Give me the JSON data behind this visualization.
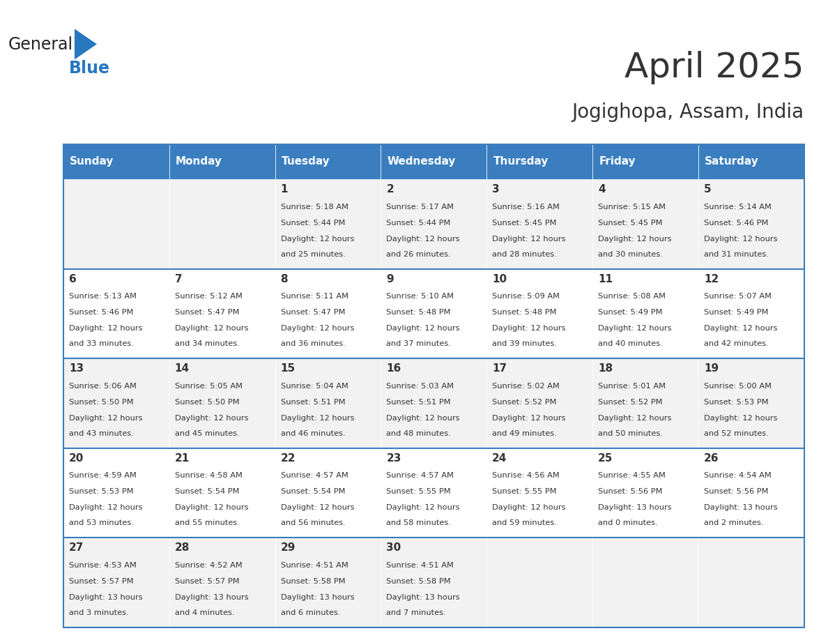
{
  "title": "April 2025",
  "subtitle": "Jogighopa, Assam, India",
  "header_bg": "#3a7ebf",
  "header_text_color": "#ffffff",
  "cell_bg_light": "#f2f2f2",
  "cell_bg_white": "#ffffff",
  "border_color": "#3a7ebf",
  "text_color": "#333333",
  "days_of_week": [
    "Sunday",
    "Monday",
    "Tuesday",
    "Wednesday",
    "Thursday",
    "Friday",
    "Saturday"
  ],
  "calendar_data": [
    [
      {
        "day": "",
        "sunrise": "",
        "sunset": "",
        "daylight": ""
      },
      {
        "day": "",
        "sunrise": "",
        "sunset": "",
        "daylight": ""
      },
      {
        "day": "1",
        "sunrise": "Sunrise: 5:18 AM",
        "sunset": "Sunset: 5:44 PM",
        "daylight": "Daylight: 12 hours\nand 25 minutes."
      },
      {
        "day": "2",
        "sunrise": "Sunrise: 5:17 AM",
        "sunset": "Sunset: 5:44 PM",
        "daylight": "Daylight: 12 hours\nand 26 minutes."
      },
      {
        "day": "3",
        "sunrise": "Sunrise: 5:16 AM",
        "sunset": "Sunset: 5:45 PM",
        "daylight": "Daylight: 12 hours\nand 28 minutes."
      },
      {
        "day": "4",
        "sunrise": "Sunrise: 5:15 AM",
        "sunset": "Sunset: 5:45 PM",
        "daylight": "Daylight: 12 hours\nand 30 minutes."
      },
      {
        "day": "5",
        "sunrise": "Sunrise: 5:14 AM",
        "sunset": "Sunset: 5:46 PM",
        "daylight": "Daylight: 12 hours\nand 31 minutes."
      }
    ],
    [
      {
        "day": "6",
        "sunrise": "Sunrise: 5:13 AM",
        "sunset": "Sunset: 5:46 PM",
        "daylight": "Daylight: 12 hours\nand 33 minutes."
      },
      {
        "day": "7",
        "sunrise": "Sunrise: 5:12 AM",
        "sunset": "Sunset: 5:47 PM",
        "daylight": "Daylight: 12 hours\nand 34 minutes."
      },
      {
        "day": "8",
        "sunrise": "Sunrise: 5:11 AM",
        "sunset": "Sunset: 5:47 PM",
        "daylight": "Daylight: 12 hours\nand 36 minutes."
      },
      {
        "day": "9",
        "sunrise": "Sunrise: 5:10 AM",
        "sunset": "Sunset: 5:48 PM",
        "daylight": "Daylight: 12 hours\nand 37 minutes."
      },
      {
        "day": "10",
        "sunrise": "Sunrise: 5:09 AM",
        "sunset": "Sunset: 5:48 PM",
        "daylight": "Daylight: 12 hours\nand 39 minutes."
      },
      {
        "day": "11",
        "sunrise": "Sunrise: 5:08 AM",
        "sunset": "Sunset: 5:49 PM",
        "daylight": "Daylight: 12 hours\nand 40 minutes."
      },
      {
        "day": "12",
        "sunrise": "Sunrise: 5:07 AM",
        "sunset": "Sunset: 5:49 PM",
        "daylight": "Daylight: 12 hours\nand 42 minutes."
      }
    ],
    [
      {
        "day": "13",
        "sunrise": "Sunrise: 5:06 AM",
        "sunset": "Sunset: 5:50 PM",
        "daylight": "Daylight: 12 hours\nand 43 minutes."
      },
      {
        "day": "14",
        "sunrise": "Sunrise: 5:05 AM",
        "sunset": "Sunset: 5:50 PM",
        "daylight": "Daylight: 12 hours\nand 45 minutes."
      },
      {
        "day": "15",
        "sunrise": "Sunrise: 5:04 AM",
        "sunset": "Sunset: 5:51 PM",
        "daylight": "Daylight: 12 hours\nand 46 minutes."
      },
      {
        "day": "16",
        "sunrise": "Sunrise: 5:03 AM",
        "sunset": "Sunset: 5:51 PM",
        "daylight": "Daylight: 12 hours\nand 48 minutes."
      },
      {
        "day": "17",
        "sunrise": "Sunrise: 5:02 AM",
        "sunset": "Sunset: 5:52 PM",
        "daylight": "Daylight: 12 hours\nand 49 minutes."
      },
      {
        "day": "18",
        "sunrise": "Sunrise: 5:01 AM",
        "sunset": "Sunset: 5:52 PM",
        "daylight": "Daylight: 12 hours\nand 50 minutes."
      },
      {
        "day": "19",
        "sunrise": "Sunrise: 5:00 AM",
        "sunset": "Sunset: 5:53 PM",
        "daylight": "Daylight: 12 hours\nand 52 minutes."
      }
    ],
    [
      {
        "day": "20",
        "sunrise": "Sunrise: 4:59 AM",
        "sunset": "Sunset: 5:53 PM",
        "daylight": "Daylight: 12 hours\nand 53 minutes."
      },
      {
        "day": "21",
        "sunrise": "Sunrise: 4:58 AM",
        "sunset": "Sunset: 5:54 PM",
        "daylight": "Daylight: 12 hours\nand 55 minutes."
      },
      {
        "day": "22",
        "sunrise": "Sunrise: 4:57 AM",
        "sunset": "Sunset: 5:54 PM",
        "daylight": "Daylight: 12 hours\nand 56 minutes."
      },
      {
        "day": "23",
        "sunrise": "Sunrise: 4:57 AM",
        "sunset": "Sunset: 5:55 PM",
        "daylight": "Daylight: 12 hours\nand 58 minutes."
      },
      {
        "day": "24",
        "sunrise": "Sunrise: 4:56 AM",
        "sunset": "Sunset: 5:55 PM",
        "daylight": "Daylight: 12 hours\nand 59 minutes."
      },
      {
        "day": "25",
        "sunrise": "Sunrise: 4:55 AM",
        "sunset": "Sunset: 5:56 PM",
        "daylight": "Daylight: 13 hours\nand 0 minutes."
      },
      {
        "day": "26",
        "sunrise": "Sunrise: 4:54 AM",
        "sunset": "Sunset: 5:56 PM",
        "daylight": "Daylight: 13 hours\nand 2 minutes."
      }
    ],
    [
      {
        "day": "27",
        "sunrise": "Sunrise: 4:53 AM",
        "sunset": "Sunset: 5:57 PM",
        "daylight": "Daylight: 13 hours\nand 3 minutes."
      },
      {
        "day": "28",
        "sunrise": "Sunrise: 4:52 AM",
        "sunset": "Sunset: 5:57 PM",
        "daylight": "Daylight: 13 hours\nand 4 minutes."
      },
      {
        "day": "29",
        "sunrise": "Sunrise: 4:51 AM",
        "sunset": "Sunset: 5:58 PM",
        "daylight": "Daylight: 13 hours\nand 6 minutes."
      },
      {
        "day": "30",
        "sunrise": "Sunrise: 4:51 AM",
        "sunset": "Sunset: 5:58 PM",
        "daylight": "Daylight: 13 hours\nand 7 minutes."
      },
      {
        "day": "",
        "sunrise": "",
        "sunset": "",
        "daylight": ""
      },
      {
        "day": "",
        "sunrise": "",
        "sunset": "",
        "daylight": ""
      },
      {
        "day": "",
        "sunrise": "",
        "sunset": "",
        "daylight": ""
      }
    ]
  ]
}
